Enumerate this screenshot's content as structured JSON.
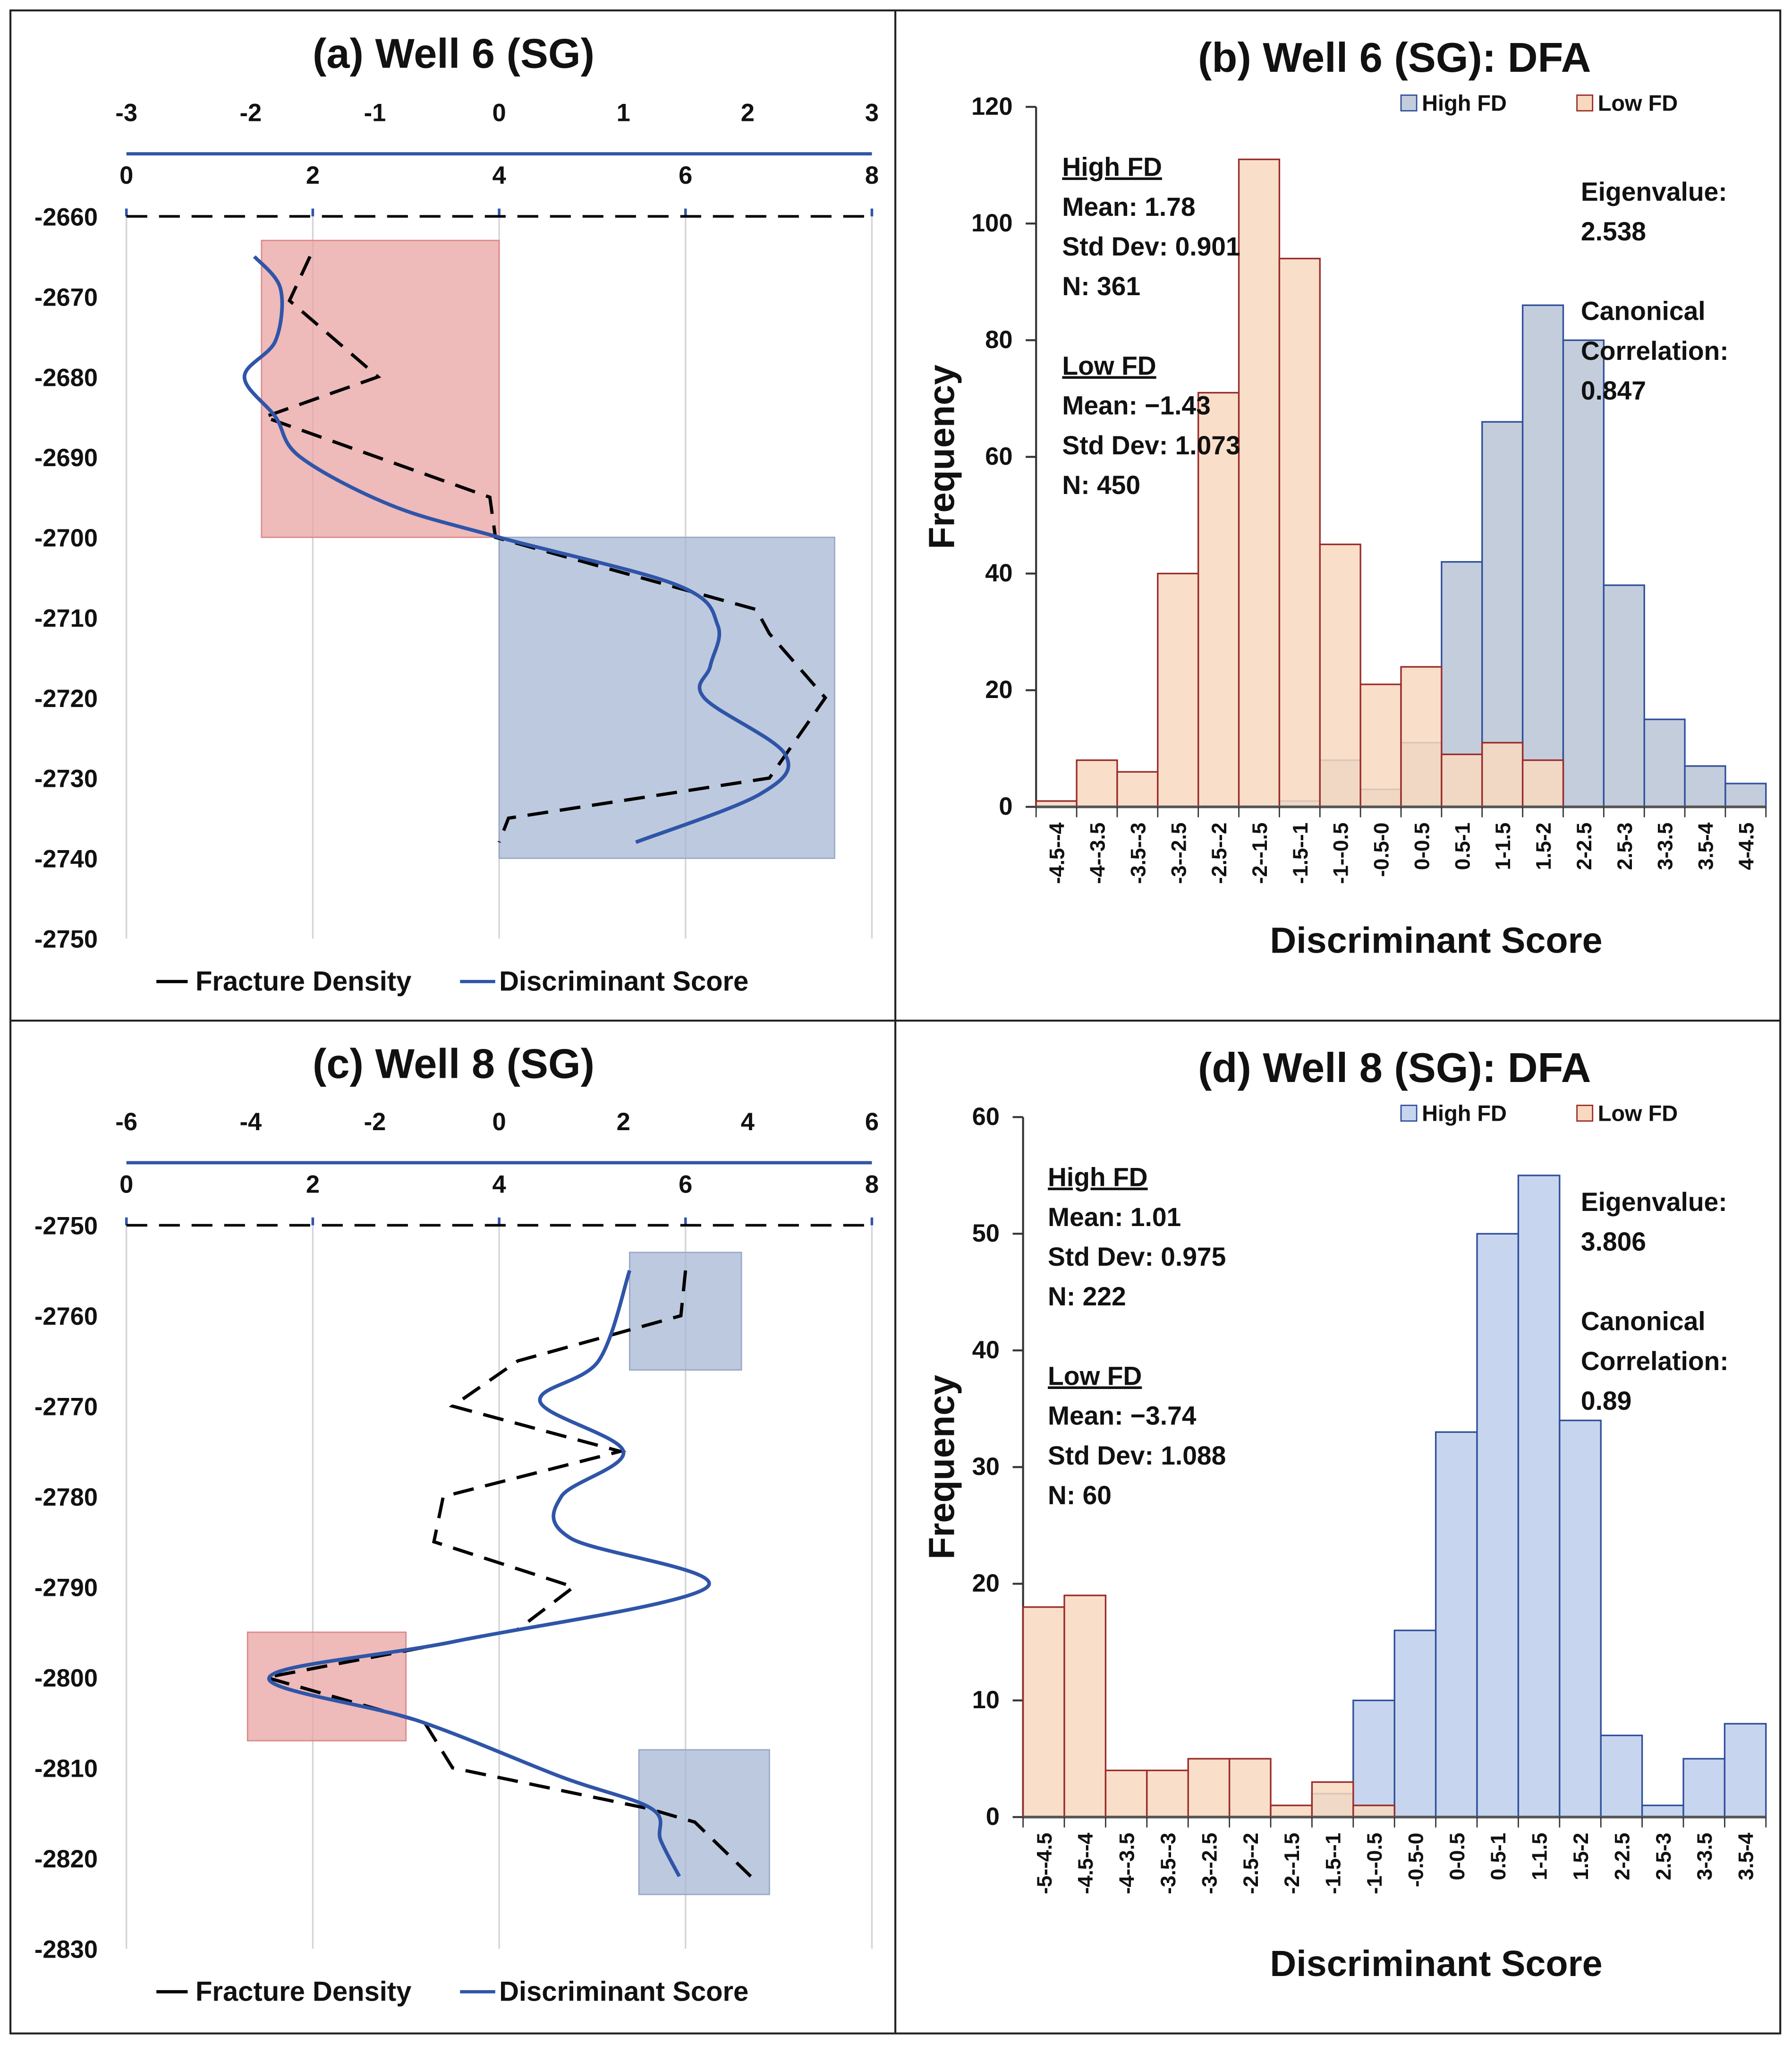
{
  "colors": {
    "fd_line": "#000000",
    "ds_line": "#2f55a8",
    "low_fill": "#f8d9c0",
    "low_edge": "#9b2a2a",
    "high_fill_b": "#c3cddc",
    "high_fill_d": "#c8d5ee",
    "high_edge": "#2f4f9c",
    "red_box": "#e8a3a3",
    "blue_box": "#a7b7d3"
  },
  "chart_data": [
    {
      "type": "line",
      "id": "a",
      "title": "(a) Well 6 (SG)",
      "depth_ticks": [
        "-2660",
        "-2670",
        "-2680",
        "-2690",
        "-2700",
        "-2710",
        "-2720",
        "-2730",
        "-2740",
        "-2750"
      ],
      "depth_range": [
        -2660,
        -2750
      ],
      "fd_axis": {
        "range": [
          0,
          8
        ],
        "ticks": [
          "0",
          "2",
          "4",
          "6",
          "8"
        ]
      },
      "ds_axis": {
        "range": [
          -3,
          3
        ],
        "ticks": [
          "-3",
          "-2",
          "-1",
          "0",
          "1",
          "2",
          "3"
        ]
      },
      "legend": [
        "Fracture Density",
        "Discriminant Score"
      ],
      "fracture_density": [
        [
          1.97,
          -2665
        ],
        [
          1.75,
          -2670.5
        ],
        [
          2.7,
          -2680
        ],
        [
          1.48,
          -2685
        ],
        [
          3.9,
          -2695
        ],
        [
          3.96,
          -2700
        ],
        [
          5.2,
          -2704
        ],
        [
          6.76,
          -2709
        ],
        [
          6.9,
          -2712
        ],
        [
          7.5,
          -2720
        ],
        [
          6.9,
          -2730
        ],
        [
          4.1,
          -2735
        ],
        [
          4.0,
          -2738
        ]
      ],
      "discriminant_score": [
        [
          -1.97,
          -2665
        ],
        [
          -1.76,
          -2669
        ],
        [
          -1.8,
          -2675.5
        ],
        [
          -2.05,
          -2680
        ],
        [
          -1.8,
          -2685
        ],
        [
          -1.6,
          -2690
        ],
        [
          -0.87,
          -2696
        ],
        [
          0,
          -2700
        ],
        [
          1.44,
          -2706
        ],
        [
          1.76,
          -2711
        ],
        [
          1.7,
          -2716
        ],
        [
          1.65,
          -2720
        ],
        [
          2.3,
          -2727
        ],
        [
          2.1,
          -2732
        ],
        [
          1.1,
          -2738
        ]
      ],
      "boxes": [
        {
          "class": "low",
          "fd": [
            1.45,
            4.0
          ],
          "depth": [
            -2663,
            -2700
          ]
        },
        {
          "class": "high",
          "fd": [
            4.0,
            7.6
          ],
          "depth": [
            -2700,
            -2740
          ]
        }
      ]
    },
    {
      "type": "bar",
      "id": "b",
      "title": "(b) Well 6 (SG): DFA",
      "xlabel": "Discriminant Score",
      "ylabel": "Frequency",
      "ylim": [
        0,
        120
      ],
      "yticks": [
        "0",
        "20",
        "40",
        "60",
        "80",
        "100",
        "120"
      ],
      "categories": [
        "-4.5--4",
        "-4--3.5",
        "-3.5--3",
        "-3--2.5",
        "-2.5--2",
        "-2--1.5",
        "-1.5--1",
        "-1--0.5",
        "-0.5-0",
        "0-0.5",
        "0.5-1",
        "1-1.5",
        "1.5-2",
        "2-2.5",
        "2.5-3",
        "3-3.5",
        "3.5-4",
        "4-4.5"
      ],
      "series": [
        {
          "name": "High FD",
          "values": [
            0,
            0,
            0,
            0,
            0,
            0,
            1,
            8,
            3,
            11,
            42,
            66,
            86,
            80,
            38,
            15,
            7,
            4
          ]
        },
        {
          "name": "Low FD",
          "values": [
            1,
            8,
            6,
            40,
            71,
            111,
            94,
            45,
            21,
            24,
            9,
            11,
            8,
            0,
            0,
            0,
            0,
            0
          ]
        }
      ],
      "stats": {
        "high": {
          "head": "High FD",
          "mean": "Mean: 1.78",
          "sd": "Std Dev: 0.901",
          "n": "N: 361"
        },
        "low": {
          "head": "Low FD",
          "mean": "Mean: −1.43",
          "sd": "Std Dev: 1.073",
          "n": "N: 450"
        },
        "eig_label": "Eigenvalue:",
        "eig": "2.538",
        "cc_label1": "Canonical",
        "cc_label2": "Correlation:",
        "cc": "0.847"
      }
    },
    {
      "type": "line",
      "id": "c",
      "title": "(c) Well 8 (SG)",
      "depth_ticks": [
        "-2750",
        "-2760",
        "-2770",
        "-2780",
        "-2790",
        "-2800",
        "-2810",
        "-2820",
        "-2830"
      ],
      "depth_range": [
        -2750,
        -2830
      ],
      "fd_axis": {
        "range": [
          0,
          8
        ],
        "ticks": [
          "0",
          "2",
          "4",
          "6",
          "8"
        ]
      },
      "ds_axis": {
        "range": [
          -6,
          6
        ],
        "ticks": [
          "-6",
          "-4",
          "-2",
          "0",
          "2",
          "4",
          "6"
        ]
      },
      "legend": [
        "Fracture Density",
        "Discriminant Score"
      ],
      "fracture_density": [
        [
          6.0,
          -2755
        ],
        [
          5.95,
          -2760
        ],
        [
          4.2,
          -2765
        ],
        [
          3.5,
          -2770
        ],
        [
          5.3,
          -2775
        ],
        [
          3.4,
          -2780
        ],
        [
          3.3,
          -2785
        ],
        [
          4.8,
          -2790
        ],
        [
          4.2,
          -2794.7
        ],
        [
          1.5,
          -2800
        ],
        [
          3.2,
          -2805
        ],
        [
          3.5,
          -2810
        ],
        [
          5.6,
          -2814.5
        ],
        [
          6.1,
          -2816
        ],
        [
          6.7,
          -2822
        ]
      ],
      "discriminant_score": [
        [
          2.1,
          -2755
        ],
        [
          1.6,
          -2765
        ],
        [
          0.66,
          -2769.5
        ],
        [
          2.0,
          -2775
        ],
        [
          1.0,
          -2780
        ],
        [
          1.15,
          -2784.6
        ],
        [
          3.35,
          -2790
        ],
        [
          -0.7,
          -2796
        ],
        [
          -3.7,
          -2800
        ],
        [
          -1.3,
          -2804.8
        ],
        [
          1.0,
          -2811
        ],
        [
          2.45,
          -2814.5
        ],
        [
          2.6,
          -2818
        ],
        [
          2.9,
          -2822
        ]
      ],
      "boxes": [
        {
          "class": "high",
          "fd": [
            5.4,
            6.6
          ],
          "depth": [
            -2753,
            -2766
          ]
        },
        {
          "class": "low",
          "fd": [
            1.3,
            3.0
          ],
          "depth": [
            -2795,
            -2807
          ]
        },
        {
          "class": "high",
          "fd": [
            5.5,
            6.9
          ],
          "depth": [
            -2808,
            -2824
          ]
        }
      ]
    },
    {
      "type": "bar",
      "id": "d",
      "title": "(d) Well 8 (SG): DFA",
      "xlabel": "Discriminant Score",
      "ylabel": "Frequency",
      "ylim": [
        0,
        60
      ],
      "yticks": [
        "0",
        "10",
        "20",
        "30",
        "40",
        "50",
        "60"
      ],
      "categories": [
        "-5--4.5",
        "-4.5--4",
        "-4--3.5",
        "-3.5--3",
        "-3--2.5",
        "-2.5--2",
        "-2--1.5",
        "-1.5--1",
        "-1--0.5",
        "-0.5-0",
        "0-0.5",
        "0.5-1",
        "1-1.5",
        "1.5-2",
        "2-2.5",
        "2.5-3",
        "3-3.5",
        "3.5-4"
      ],
      "series": [
        {
          "name": "High FD",
          "values": [
            0,
            0,
            0,
            0,
            0,
            0,
            0,
            2,
            10,
            16,
            33,
            50,
            55,
            34,
            7,
            1,
            5,
            8
          ]
        },
        {
          "name": "Low FD",
          "values": [
            18,
            19,
            4,
            4,
            5,
            5,
            1,
            3,
            1,
            0,
            0,
            0,
            0,
            0,
            0,
            0,
            0,
            0
          ]
        }
      ],
      "stats": {
        "high": {
          "head": "High FD",
          "mean": "Mean: 1.01",
          "sd": "Std Dev: 0.975",
          "n": "N: 222"
        },
        "low": {
          "head": "Low FD",
          "mean": "Mean: −3.74",
          "sd": "Std Dev: 1.088",
          "n": "N: 60"
        },
        "eig_label": "Eigenvalue:",
        "eig": "3.806",
        "cc_label1": "Canonical",
        "cc_label2": "Correlation:",
        "cc": "0.89"
      }
    }
  ]
}
